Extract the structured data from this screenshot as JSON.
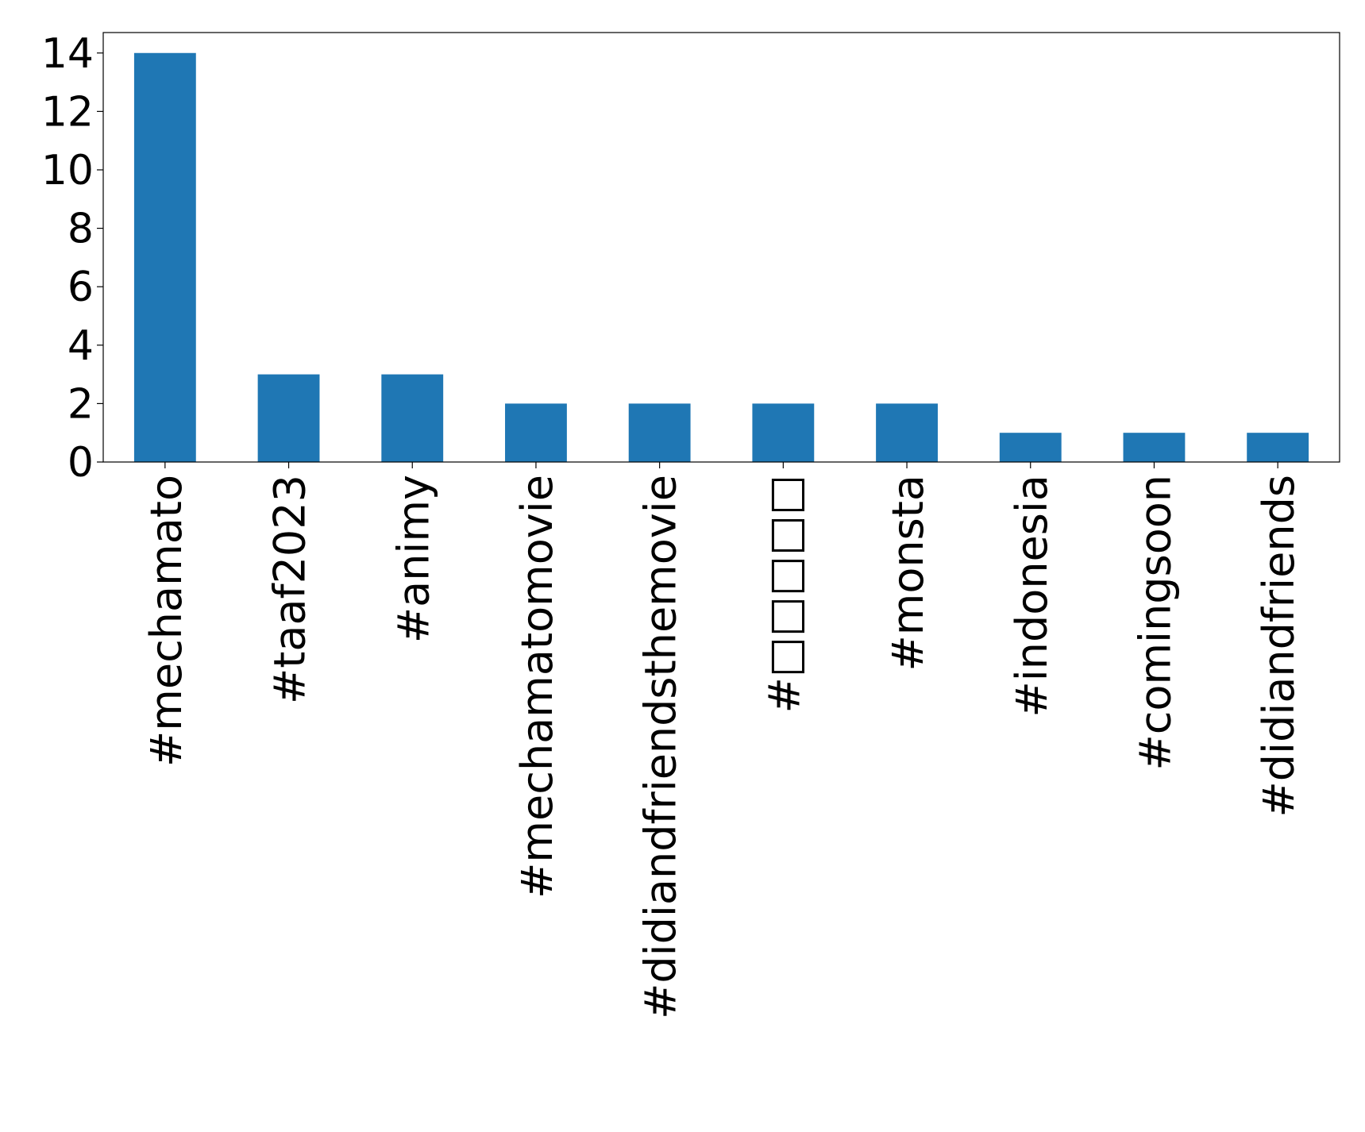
{
  "chart_data": {
    "type": "bar",
    "categories": [
      "#mechamato",
      "#taaf2023",
      "#animy",
      "#mechamatomovie",
      "#didiandfriendsthemovie",
      "#□□□□□",
      "#monsta",
      "#indonesia",
      "#comingsoon",
      "#didiandfriends"
    ],
    "values": [
      14,
      3,
      3,
      2,
      2,
      2,
      2,
      1,
      1,
      1
    ],
    "color": "#1f77b4",
    "ylim": [
      0,
      14.7
    ],
    "yticks": [
      0,
      2,
      4,
      6,
      8,
      10,
      12,
      14
    ],
    "grid": false
  }
}
